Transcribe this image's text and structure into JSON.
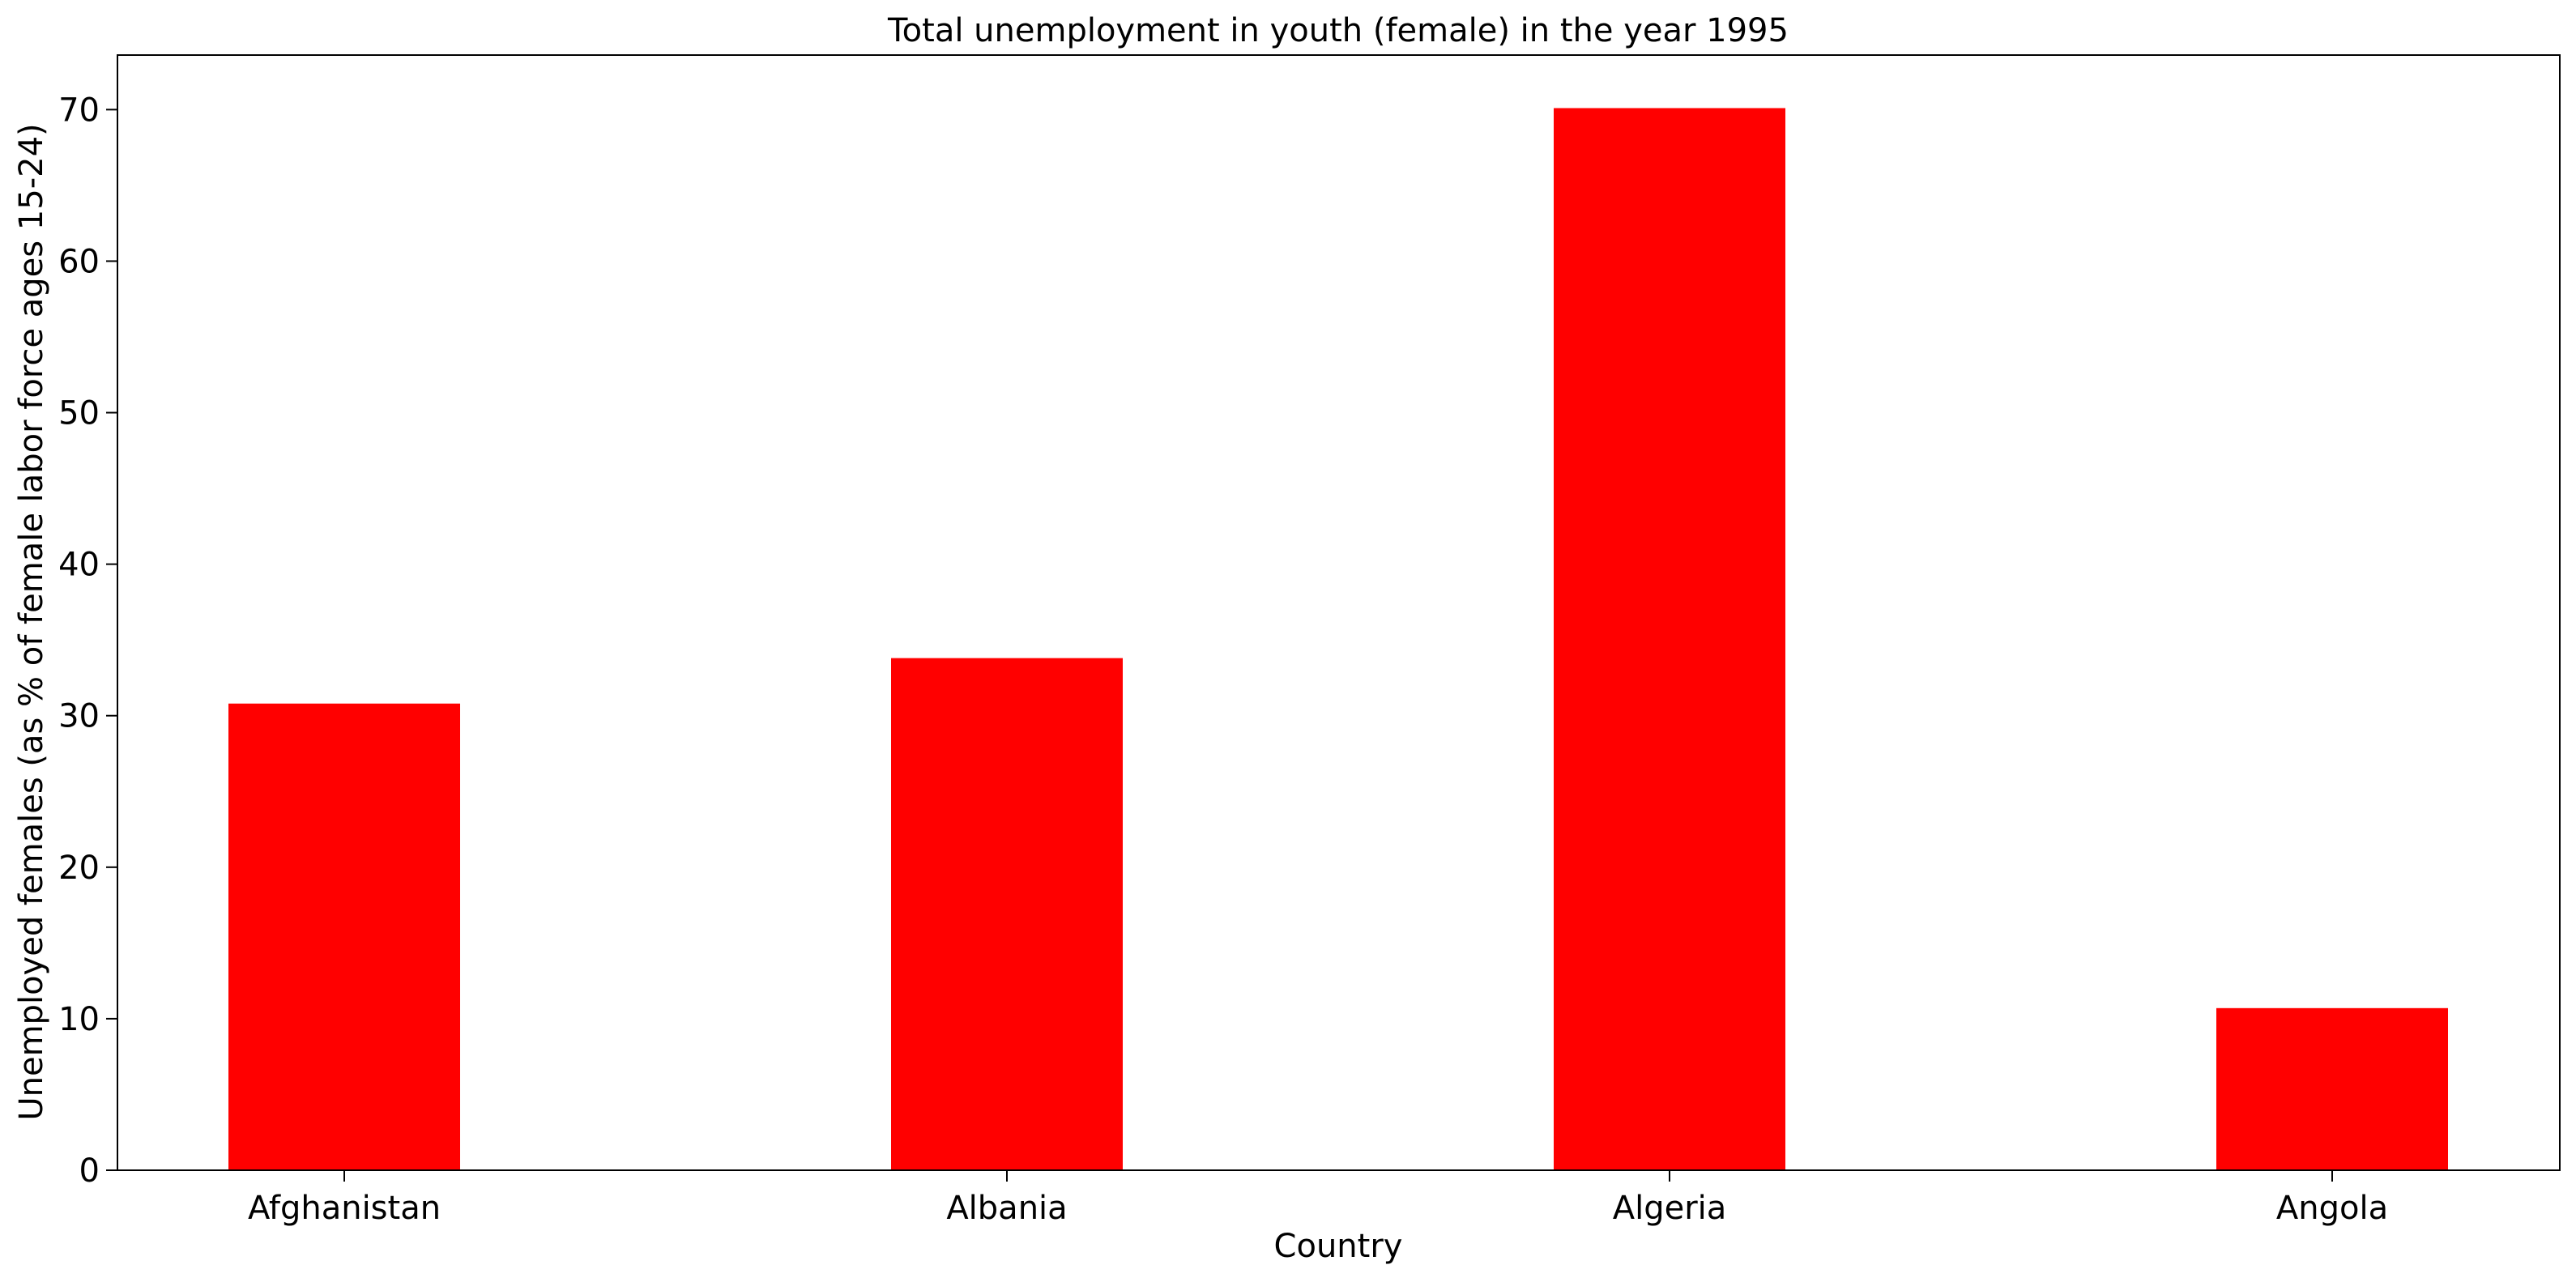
{
  "chart_data": {
    "type": "bar",
    "title": "Total unemployment in youth (female) in the year 1995",
    "xlabel": "Country",
    "ylabel": "Unemployed females (as % of female labor force ages 15-24)",
    "categories": [
      "Afghanistan",
      "Albania",
      "Algeria",
      "Angola"
    ],
    "values": [
      30.8,
      33.8,
      70.1,
      10.7
    ],
    "ylim": [
      0,
      73.6
    ],
    "yticks": [
      0,
      10,
      20,
      30,
      40,
      50,
      60,
      70
    ],
    "grid": false,
    "bar_color": "#ff0000"
  }
}
